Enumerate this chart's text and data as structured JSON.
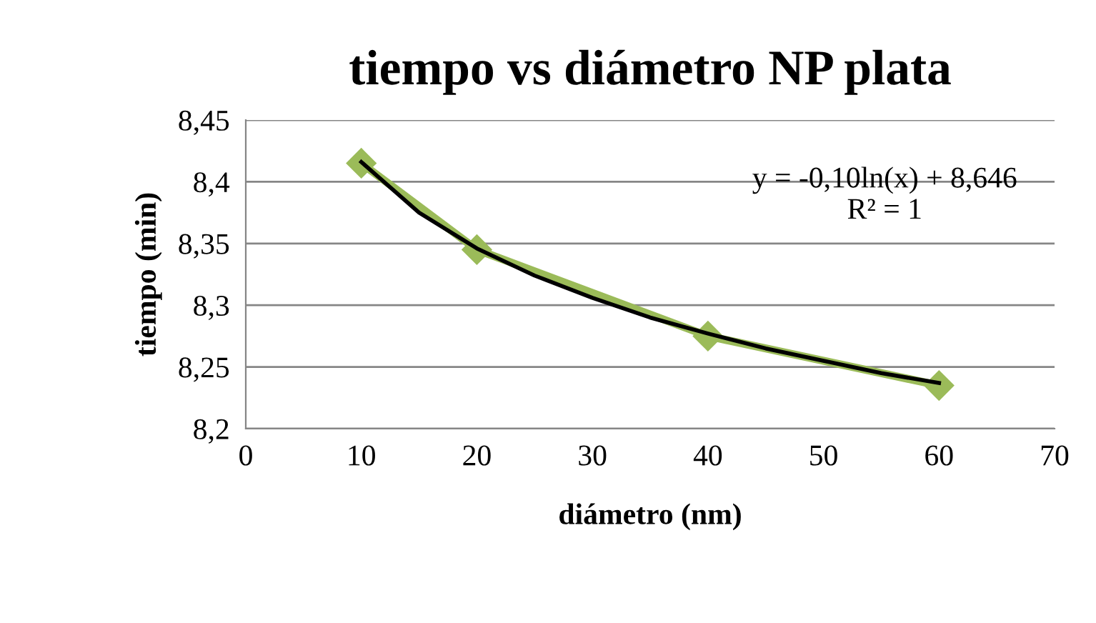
{
  "chart_data": {
    "type": "line",
    "title": "tiempo vs diámetro NP plata",
    "xlabel": "diámetro (nm)",
    "ylabel": "tiempo (min)",
    "series": [
      {
        "color": "#9bbb59",
        "x": [
          10,
          20,
          40,
          60
        ],
        "values": [
          8.415,
          8.345,
          8.275,
          8.235
        ],
        "marker": "diamond"
      },
      {
        "color": "#000000",
        "x": [
          10,
          15,
          20,
          25,
          30,
          35,
          40,
          45,
          50,
          55,
          60
        ],
        "values": [
          8.416,
          8.375,
          8.346,
          8.324,
          8.306,
          8.29,
          8.277,
          8.265,
          8.255,
          8.245,
          8.237
        ],
        "marker": "none"
      }
    ],
    "xlim": [
      0,
      70
    ],
    "xticks": [
      0,
      10,
      20,
      30,
      40,
      50,
      60,
      70
    ],
    "ylim": [
      8.2,
      8.45
    ],
    "yticks": [
      {
        "value": 8.2,
        "label": "8,2"
      },
      {
        "value": 8.25,
        "label": "8,25"
      },
      {
        "value": 8.3,
        "label": "8,3"
      },
      {
        "value": 8.35,
        "label": "8,35"
      },
      {
        "value": 8.4,
        "label": "8,4"
      },
      {
        "value": 8.45,
        "label": "8,45"
      }
    ],
    "grid": "y",
    "legend": false,
    "annotations": [
      "y = -0,10ln(x) + 8,646",
      "R² = 1"
    ]
  }
}
